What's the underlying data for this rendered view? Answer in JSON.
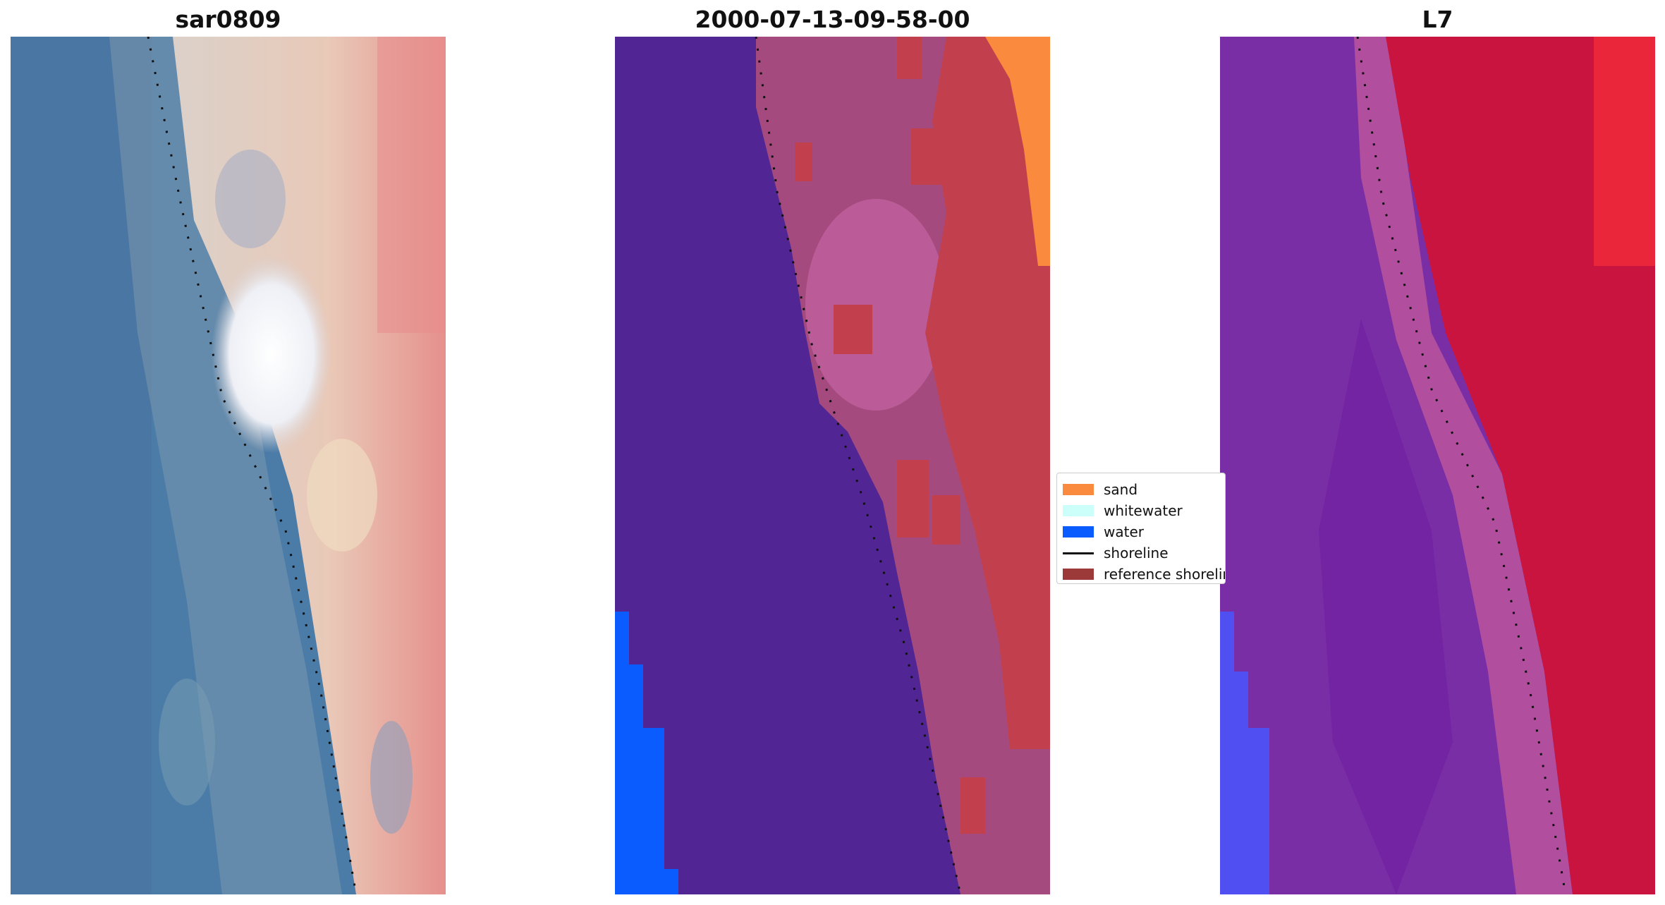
{
  "panels": [
    {
      "title": "sar0809",
      "name": "sar0809-rgb"
    },
    {
      "title": "2000-07-13-09-58-00",
      "name": "classified-image"
    },
    {
      "title": "L7",
      "name": "l7-index-image"
    }
  ],
  "legend": {
    "items": [
      {
        "label": "sand",
        "color": "#f98a3e",
        "kind": "patch"
      },
      {
        "label": "whitewater",
        "color": "#ccfffa",
        "kind": "patch"
      },
      {
        "label": "water",
        "color": "#0a5cff",
        "kind": "patch"
      },
      {
        "label": "shoreline",
        "color": "#111111",
        "kind": "line"
      },
      {
        "label": "reference shoreline",
        "color": "#9c3a3a",
        "kind": "patch"
      }
    ]
  },
  "colors": {
    "sar_ocean": "#4a7aa6",
    "sar_beach": "#c8b8b0",
    "sar_land": "#e48a88",
    "class_water_body": "#512594",
    "class_land": "#a54a7e",
    "class_red": "#c2404e",
    "l7_purple": "#7a2ea6",
    "l7_red": "#c8143e",
    "l7_blue": "#4a4af0"
  }
}
